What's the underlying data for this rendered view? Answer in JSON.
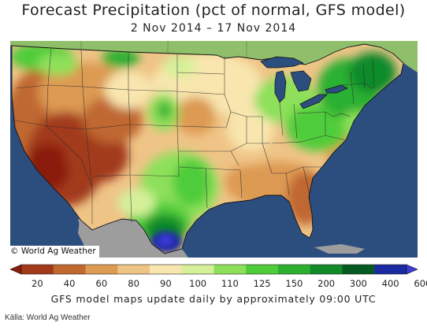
{
  "title": "Forecast Precipitation (pct of normal, GFS model)",
  "date_range": "2 Nov 2014 – 17 Nov 2014",
  "copyright": "© World Ag Weather",
  "update_note": "GFS model maps update daily by approximately 09:00 UTC",
  "source_credit": "Källa: World Ag Weather",
  "legend": {
    "ticks": [
      "20",
      "40",
      "60",
      "80",
      "90",
      "100",
      "110",
      "125",
      "150",
      "200",
      "300",
      "400",
      "600"
    ],
    "colors": [
      "#8b1a0c",
      "#a23a1a",
      "#c06830",
      "#dd9a52",
      "#efc487",
      "#f8e6ae",
      "#d6f09a",
      "#8ee05a",
      "#4fcc3a",
      "#2bb030",
      "#118a2a",
      "#045a20",
      "#1a2aa0",
      "#3b3bd9"
    ]
  },
  "map": {
    "region": "Contiguous United States",
    "colors": {
      "ocean": "#2c4e7e",
      "outside_land": "#9d9d9d"
    }
  }
}
